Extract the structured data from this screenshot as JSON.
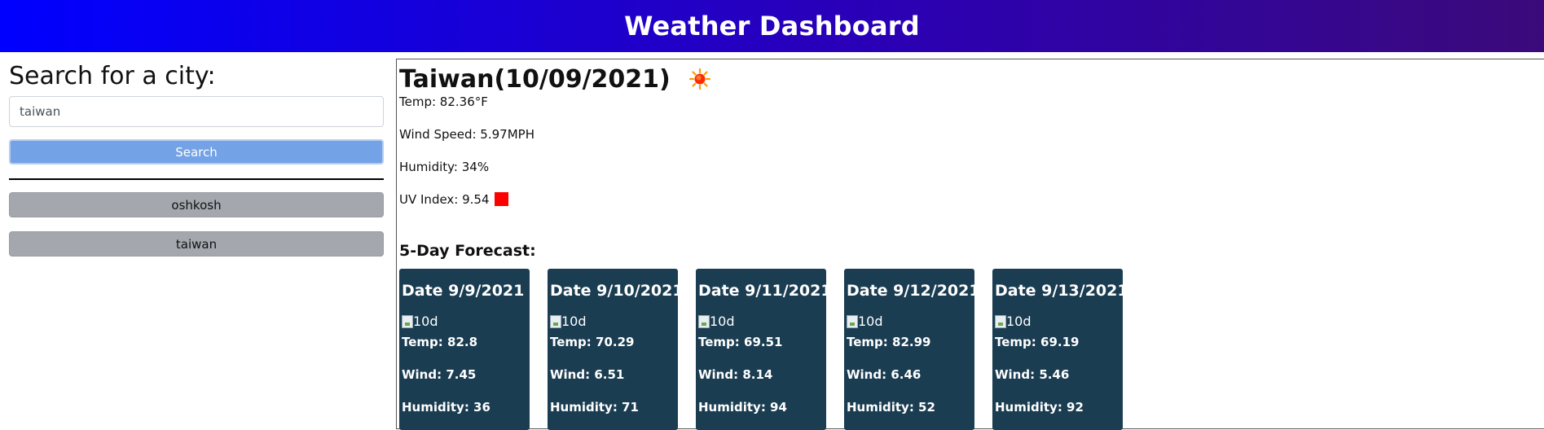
{
  "header": {
    "title": "Weather Dashboard"
  },
  "sidebar": {
    "heading": "Search for a city:",
    "search_value": "taiwan",
    "search_button": "Search",
    "history": [
      "oshkosh",
      "taiwan"
    ]
  },
  "current": {
    "city_date": "Taiwan(10/09/2021)",
    "icon": "sun-icon",
    "temp": "Temp: 82.36°F",
    "wind": "Wind Speed: 5.97MPH",
    "humidity": "Humidity: 34%",
    "uv": "UV Index: 9.54",
    "uv_color": "#ff0000"
  },
  "forecast": {
    "title": "5-Day Forecast:",
    "cards": [
      {
        "date": "Date 9/9/2021",
        "icon_alt": "10d",
        "temp": "Temp: 82.8",
        "wind": "Wind: 7.45",
        "humidity": "Humidity: 36"
      },
      {
        "date": "Date 9/10/2021",
        "icon_alt": "10d",
        "temp": "Temp: 70.29",
        "wind": "Wind: 6.51",
        "humidity": "Humidity: 71"
      },
      {
        "date": "Date 9/11/2021",
        "icon_alt": "10d",
        "temp": "Temp: 69.51",
        "wind": "Wind: 8.14",
        "humidity": "Humidity: 94"
      },
      {
        "date": "Date 9/12/2021",
        "icon_alt": "10d",
        "temp": "Temp: 82.99",
        "wind": "Wind: 6.46",
        "humidity": "Humidity: 52"
      },
      {
        "date": "Date 9/13/2021",
        "icon_alt": "10d",
        "temp": "Temp: 69.19",
        "wind": "Wind: 5.46",
        "humidity": "Humidity: 92"
      }
    ]
  },
  "colors": {
    "header_gradient_start": "#0000ff",
    "header_gradient_end": "#3b0a7a",
    "search_button": "#74a2e6",
    "history_button": "#a4a8ae",
    "forecast_card": "#1b3d52"
  }
}
